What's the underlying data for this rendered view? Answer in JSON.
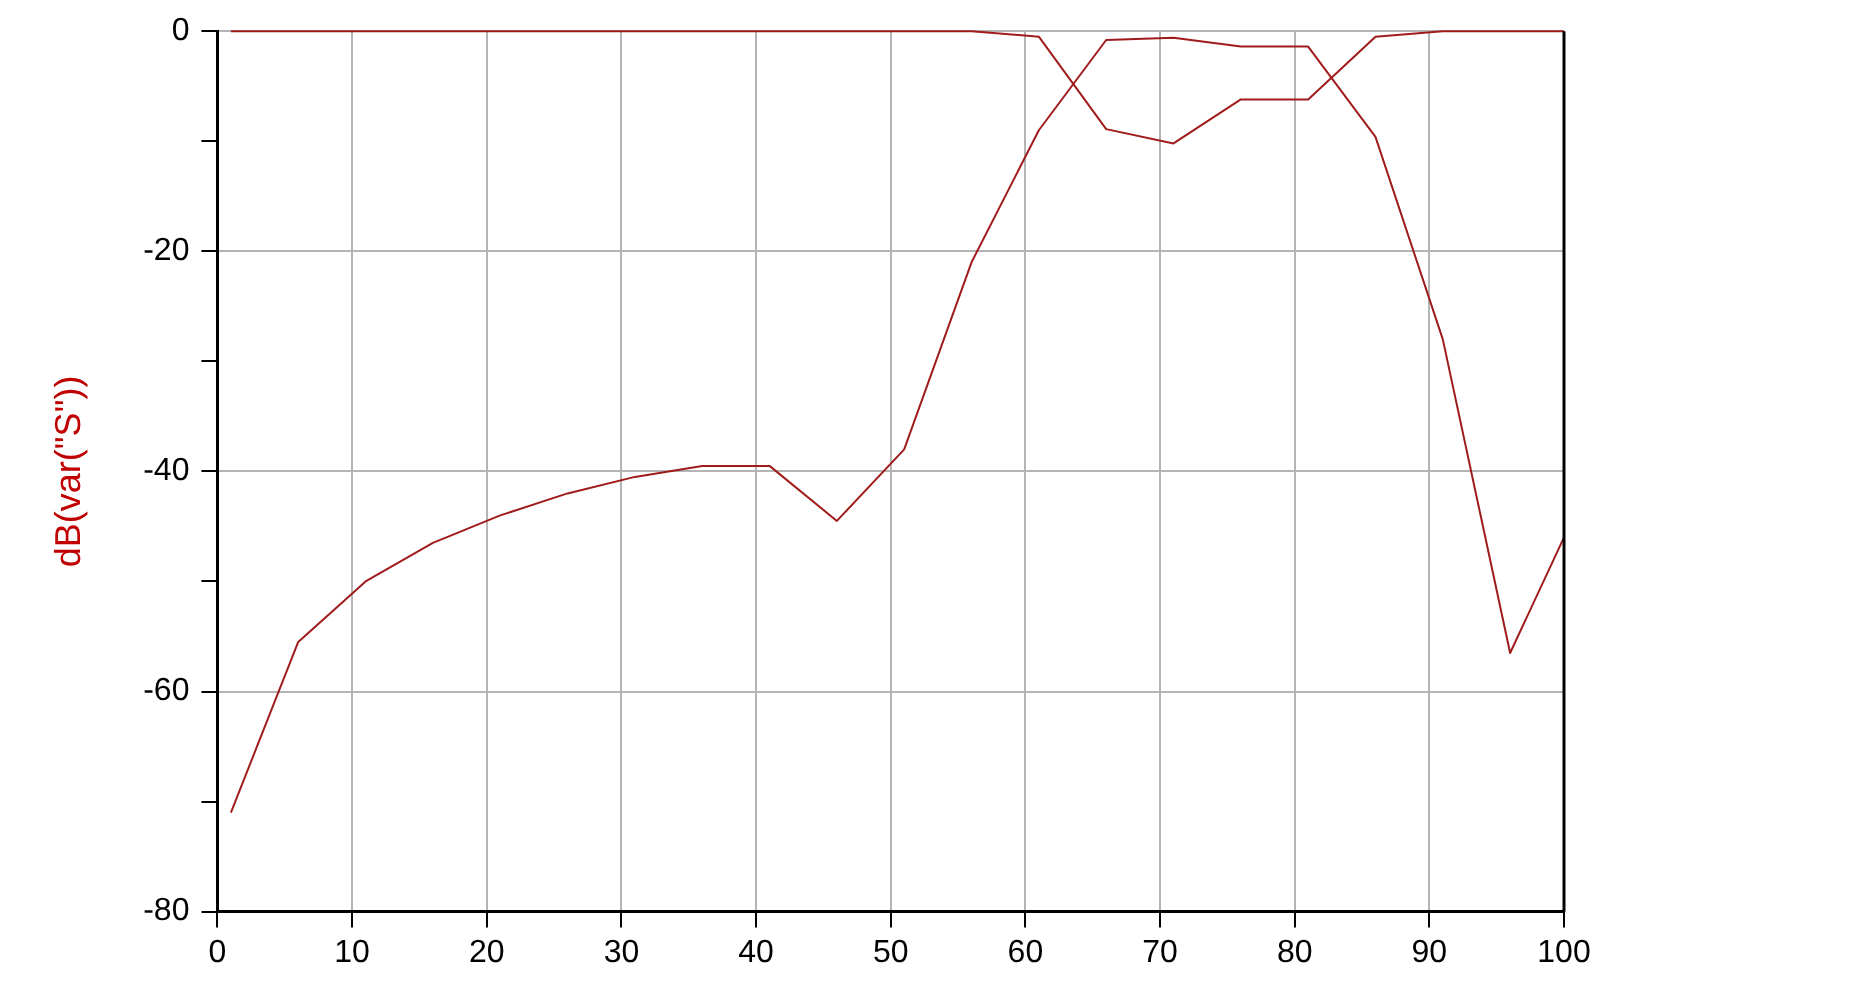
{
  "chart_data": {
    "type": "line",
    "ylabel": "dB(var(\"S\"))",
    "x": [
      1,
      6,
      11,
      16,
      21,
      26,
      31,
      36,
      41,
      46,
      51,
      56,
      61,
      66,
      71,
      76,
      81,
      86,
      91,
      96,
      100
    ],
    "series": [
      {
        "color": "#a01c1c",
        "values": [
          -71,
          -55.5,
          -50,
          -46.5,
          -44,
          -42,
          -40.5,
          -39.5,
          -39.5,
          -44.5,
          -38,
          -21,
          -9,
          -0.8,
          -0.6,
          -1.4,
          -1.4,
          -9.6,
          -28,
          -56.5,
          -46
        ]
      },
      {
        "color": "#a01c1c",
        "values": [
          0,
          0,
          0,
          0,
          0,
          0,
          0,
          0,
          0,
          0,
          0,
          0,
          -0.5,
          -8.9,
          -10.2,
          -6.2,
          -6.2,
          -0.5,
          0,
          0,
          0
        ]
      }
    ],
    "xlim": [
      0,
      100
    ],
    "xticks": [
      0,
      10,
      20,
      30,
      40,
      50,
      60,
      70,
      80,
      90,
      100
    ],
    "ylim": [
      -80,
      0
    ],
    "yticks": [
      -80,
      {
        "value": -70,
        "label": null
      },
      -60,
      {
        "value": -50,
        "label": null
      },
      -40,
      {
        "value": -30,
        "label": null
      },
      -20,
      {
        "value": -10,
        "label": null
      },
      0
    ],
    "grid": true,
    "legend": false,
    "marker": "none",
    "line_style": "solid"
  }
}
